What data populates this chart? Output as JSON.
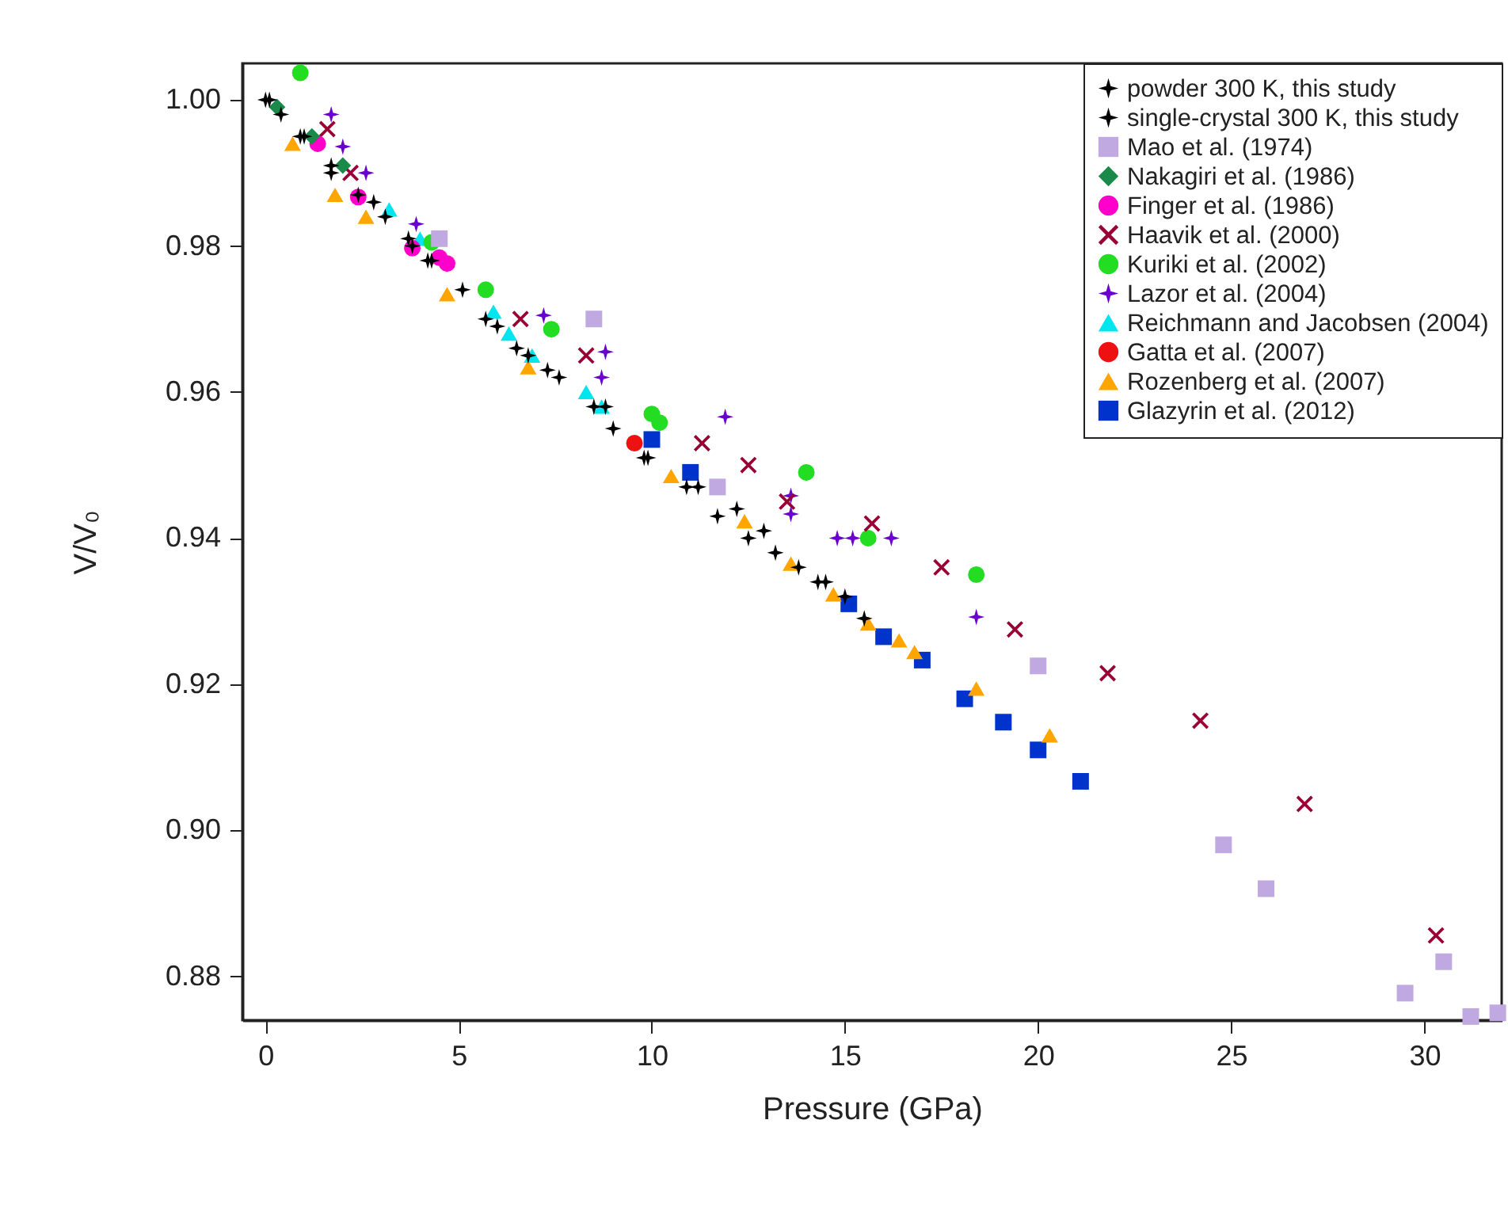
{
  "chart_data": {
    "type": "scatter",
    "xlabel": "Pressure (GPa)",
    "ylabel": "V/V₀",
    "xlim": [
      -0.6,
      32.0
    ],
    "ylim": [
      0.874,
      1.005
    ],
    "xticks": [
      0,
      5,
      10,
      15,
      20,
      25,
      30
    ],
    "yticks": [
      {
        "value": 0.88,
        "label": "0.88"
      },
      {
        "value": 0.9,
        "label": "0.90"
      },
      {
        "value": 0.92,
        "label": "0.92"
      },
      {
        "value": 0.94,
        "label": "0.94"
      },
      {
        "value": 0.96,
        "label": "0.96"
      },
      {
        "value": 0.98,
        "label": "0.98"
      },
      {
        "value": 1.0,
        "label": "1.00"
      }
    ],
    "grid": false,
    "legend": "top right",
    "series": [
      {
        "name": "powder 300 K, this study",
        "color": "#000000",
        "marker": "star",
        "x": [
          0.1,
          0.4,
          0.9,
          1.7,
          2.4,
          3.1,
          3.7,
          4.3,
          5.1,
          6.0,
          6.8,
          7.6,
          8.5,
          9.0,
          9.9,
          10.9,
          11.7,
          12.5,
          13.2,
          14.3,
          15.0
        ],
        "values": [
          1.0,
          0.998,
          0.995,
          0.99,
          0.987,
          0.984,
          0.981,
          0.978,
          0.974,
          0.969,
          0.965,
          0.962,
          0.958,
          0.955,
          0.951,
          0.947,
          0.943,
          0.94,
          0.938,
          0.934,
          0.932
        ]
      },
      {
        "name": "single-crystal 300 K, this study",
        "color": "#000000",
        "marker": "star",
        "x": [
          0.0,
          1.0,
          1.7,
          2.8,
          3.8,
          4.2,
          5.7,
          6.5,
          7.3,
          8.8,
          9.8,
          11.2,
          12.2,
          12.9,
          13.8,
          14.5,
          15.5
        ],
        "values": [
          1.0,
          0.995,
          0.991,
          0.986,
          0.98,
          0.978,
          0.97,
          0.966,
          0.963,
          0.958,
          0.951,
          0.947,
          0.944,
          0.941,
          0.936,
          0.934,
          0.929
        ]
      },
      {
        "name": "Mao et al. (1974)",
        "color": "#c0a8e0",
        "marker": "square",
        "x": [
          4.5,
          8.5,
          11.7,
          20.0,
          24.8,
          25.9,
          29.5,
          30.5,
          31.2,
          31.9
        ],
        "values": [
          0.981,
          0.97,
          0.947,
          0.9225,
          0.898,
          0.892,
          0.8777,
          0.882,
          0.8745,
          0.875
        ]
      },
      {
        "name": "Nakagiri et al. (1986)",
        "color": "#1a8a4a",
        "marker": "diamond",
        "x": [
          0.3,
          1.2,
          2.0
        ],
        "values": [
          0.999,
          0.995,
          0.991
        ]
      },
      {
        "name": "Finger et al. (1986)",
        "color": "#ff00cc",
        "marker": "circle",
        "x": [
          1.35,
          2.4,
          3.8,
          4.5,
          4.7
        ],
        "values": [
          0.994,
          0.9867,
          0.9797,
          0.9784,
          0.9776
        ]
      },
      {
        "name": "Haavik et al. (2000)",
        "color": "#990033",
        "marker": "cross",
        "x": [
          1.6,
          2.2,
          6.6,
          8.3,
          11.3,
          12.5,
          13.5,
          15.7,
          17.5,
          19.4,
          21.8,
          24.2,
          26.9,
          30.3
        ],
        "values": [
          0.996,
          0.99,
          0.97,
          0.965,
          0.953,
          0.95,
          0.945,
          0.942,
          0.936,
          0.9275,
          0.9215,
          0.915,
          0.9036,
          0.8856
        ]
      },
      {
        "name": "Kuriki et al. (2002)",
        "color": "#22dd22",
        "marker": "circle",
        "x": [
          0.9,
          4.3,
          5.7,
          7.4,
          10.0,
          10.2,
          14.0,
          15.6,
          18.4
        ],
        "values": [
          1.0037,
          0.9805,
          0.974,
          0.9686,
          0.957,
          0.9558,
          0.949,
          0.94,
          0.935
        ]
      },
      {
        "name": "Lazor et al. (2004)",
        "color": "#6a00d0",
        "marker": "star",
        "x": [
          1.7,
          2.0,
          2.6,
          3.9,
          7.2,
          8.8,
          8.7,
          11.9,
          13.6,
          13.6,
          14.8,
          15.2,
          16.2,
          18.4
        ],
        "values": [
          0.998,
          0.9936,
          0.99,
          0.983,
          0.9705,
          0.9655,
          0.962,
          0.9566,
          0.9458,
          0.9433,
          0.94,
          0.94,
          0.94,
          0.9292
        ]
      },
      {
        "name": "Reichmann and Jacobsen (2004)",
        "color": "#00e5ee",
        "marker": "triangle",
        "x": [
          3.2,
          4.0,
          5.9,
          6.3,
          6.9,
          8.3,
          8.7
        ],
        "values": [
          0.985,
          0.981,
          0.971,
          0.968,
          0.965,
          0.96,
          0.958
        ]
      },
      {
        "name": "Gatta et al. (2007)",
        "color": "#ee1111",
        "marker": "circle",
        "x": [
          9.55
        ],
        "values": [
          0.953
        ]
      },
      {
        "name": "Rozenberg et al. (2007)",
        "color": "#ffa500",
        "marker": "triangle",
        "x": [
          0.7,
          1.8,
          2.6,
          4.7,
          6.8,
          10.5,
          12.4,
          13.6,
          14.7,
          15.6,
          16.4,
          16.8,
          18.4,
          20.3
        ],
        "values": [
          0.994,
          0.987,
          0.984,
          0.9734,
          0.9634,
          0.9485,
          0.9423,
          0.9365,
          0.9323,
          0.9283,
          0.926,
          0.9244,
          0.9194,
          0.913
        ]
      },
      {
        "name": "Glazyrin et al. (2012)",
        "color": "#0033cc",
        "marker": "square",
        "x": [
          10.0,
          11.0,
          15.1,
          16.0,
          17.0,
          18.1,
          19.1,
          20.0,
          21.1
        ],
        "values": [
          0.9535,
          0.949,
          0.931,
          0.9265,
          0.9233,
          0.918,
          0.9148,
          0.911,
          0.9067
        ]
      }
    ]
  }
}
